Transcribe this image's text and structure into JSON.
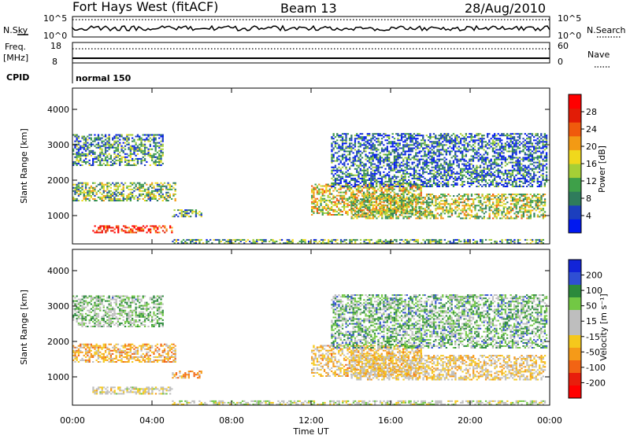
{
  "header": {
    "station": "Fort Hays West (fitACF)",
    "beam": "Beam 13",
    "date": "28/Aug/2010"
  },
  "top_panels": {
    "nsky_label": "N.Sky",
    "nsky_top": "10^5",
    "nsky_bottom": "10^0",
    "nsearch_label": "N.Search",
    "freq_label_1": "Freq.",
    "freq_label_2": "[MHz]",
    "freq_top": "18",
    "freq_bottom": "8",
    "nave_label": "Nave",
    "nave_top": "60",
    "nave_bottom": "0",
    "cpid_label": "CPID",
    "cpid_value": "normal 150"
  },
  "colors": {
    "power_scale": [
      "#0018f0",
      "#1c3fbe",
      "#2f7c5c",
      "#3ea049",
      "#a6cf36",
      "#f0d81c",
      "#f39a14",
      "#f05a0c",
      "#e21c06",
      "#ff0000"
    ],
    "velocity_scale": [
      "#1224d8",
      "#2f4fd4",
      "#2c8a3c",
      "#72c844",
      "#bebebe",
      "#bebebe",
      "#f5c81c",
      "#f59a18",
      "#f26414",
      "#e81e0c",
      "#ff0000"
    ]
  },
  "chart_data": [
    {
      "type": "heatmap",
      "name": "power",
      "ylabel": "Slant Range [km]",
      "xlabel": "Time UT",
      "xticks": [
        "00:00",
        "04:00",
        "08:00",
        "12:00",
        "16:00",
        "20:00",
        "00:00"
      ],
      "yticks": [
        "1000",
        "2000",
        "3000",
        "4000"
      ],
      "ylim": [
        200,
        4600
      ],
      "xlim_hours": [
        0,
        24
      ],
      "colorbar_label": "Power [dB]",
      "colorbar_ticks": [
        "4",
        "8",
        "12",
        "16",
        "20",
        "24",
        "28"
      ],
      "colorbar_range": [
        0,
        30
      ],
      "echo_regions": [
        {
          "t0": 1.0,
          "t1": 5.0,
          "r0": 500,
          "r1": 700,
          "value": 26
        },
        {
          "t0": 0.0,
          "t1": 5.2,
          "r0": 1400,
          "r1": 1900,
          "value": 12
        },
        {
          "t0": 0.0,
          "t1": 4.5,
          "r0": 2400,
          "r1": 3300,
          "value": 8
        },
        {
          "t0": 5.0,
          "t1": 6.5,
          "r0": 950,
          "r1": 1150,
          "value": 10
        },
        {
          "t0": 5.0,
          "t1": 23.8,
          "r0": 200,
          "r1": 320,
          "value": 10
        },
        {
          "t0": 12.0,
          "t1": 17.5,
          "r0": 1000,
          "r1": 1900,
          "value": 16
        },
        {
          "t0": 14.0,
          "t1": 23.8,
          "r0": 900,
          "r1": 1600,
          "value": 14
        },
        {
          "t0": 13.0,
          "t1": 23.8,
          "r0": 1800,
          "r1": 3300,
          "value": 6
        }
      ]
    },
    {
      "type": "heatmap",
      "name": "velocity",
      "ylabel": "Slant Range [km]",
      "xlabel": "Time UT",
      "xticks": [
        "00:00",
        "04:00",
        "08:00",
        "12:00",
        "16:00",
        "20:00",
        "00:00"
      ],
      "yticks": [
        "1000",
        "2000",
        "3000",
        "4000"
      ],
      "ylim": [
        200,
        4600
      ],
      "xlim_hours": [
        0,
        24
      ],
      "colorbar_label": "Velocity [m s⁻¹]",
      "colorbar_ticks": [
        "200",
        "100",
        "50",
        "15",
        "-15",
        "-50",
        "-100",
        "-200"
      ],
      "colorbar_range": [
        -250,
        250
      ],
      "echo_regions": [
        {
          "t0": 1.0,
          "t1": 5.0,
          "r0": 500,
          "r1": 700,
          "value": 0
        },
        {
          "t0": 0.0,
          "t1": 5.2,
          "r0": 1400,
          "r1": 1900,
          "value": -60
        },
        {
          "t0": 0.0,
          "t1": 4.5,
          "r0": 2400,
          "r1": 3300,
          "value": 80
        },
        {
          "t0": 5.0,
          "t1": 6.5,
          "r0": 950,
          "r1": 1150,
          "value": -80
        },
        {
          "t0": 5.0,
          "t1": 23.8,
          "r0": 200,
          "r1": 320,
          "value": 30
        },
        {
          "t0": 12.0,
          "t1": 17.5,
          "r0": 1000,
          "r1": 1900,
          "value": -40
        },
        {
          "t0": 14.0,
          "t1": 23.8,
          "r0": 900,
          "r1": 1600,
          "value": -30
        },
        {
          "t0": 13.0,
          "t1": 23.8,
          "r0": 1800,
          "r1": 3300,
          "value": 100
        }
      ]
    }
  ]
}
